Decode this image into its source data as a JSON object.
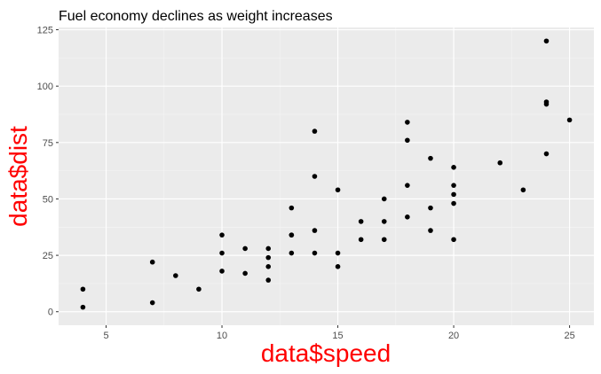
{
  "colors": {
    "panel_background": "#ebebeb",
    "grid_major": "#ffffff",
    "grid_minor": "#f5f5f5",
    "point": "#000000",
    "axis_title": "#ff0000",
    "tick_text": "#4d4d4d",
    "tick_mark": "#333333"
  },
  "chart_data": {
    "type": "scatter",
    "title": "Fuel economy declines as weight increases",
    "xlabel": "data$speed",
    "ylabel": "data$dist",
    "xlim": [
      2.95,
      26.05
    ],
    "ylim": [
      -6,
      126
    ],
    "x_ticks": [
      5,
      10,
      15,
      20,
      25
    ],
    "y_ticks": [
      0,
      25,
      50,
      75,
      100,
      125
    ],
    "x_tick_labels": [
      "5",
      "10",
      "15",
      "20",
      "25"
    ],
    "y_tick_labels": [
      "0",
      "25",
      "50",
      "75",
      "100",
      "125"
    ],
    "x_minor": [
      2.5,
      7.5,
      12.5,
      17.5,
      22.5
    ],
    "y_minor": [
      12.5,
      37.5,
      62.5,
      87.5,
      112.5
    ],
    "grid": true,
    "legend": "none",
    "series": [
      {
        "x": [
          4,
          4,
          7,
          7,
          8,
          9,
          10,
          10,
          10,
          11,
          11,
          12,
          12,
          12,
          12,
          13,
          13,
          13,
          13,
          14,
          14,
          14,
          14,
          15,
          15,
          15,
          16,
          16,
          17,
          17,
          17,
          18,
          18,
          18,
          18,
          19,
          19,
          19,
          20,
          20,
          20,
          20,
          20,
          22,
          23,
          24,
          24,
          24,
          24,
          25
        ],
        "y": [
          2,
          10,
          4,
          22,
          16,
          10,
          18,
          26,
          34,
          17,
          28,
          14,
          20,
          24,
          28,
          26,
          34,
          34,
          46,
          26,
          36,
          60,
          80,
          20,
          26,
          54,
          32,
          40,
          32,
          40,
          50,
          42,
          56,
          76,
          84,
          36,
          46,
          68,
          32,
          48,
          52,
          56,
          64,
          66,
          54,
          70,
          92,
          93,
          120,
          85
        ]
      }
    ]
  }
}
